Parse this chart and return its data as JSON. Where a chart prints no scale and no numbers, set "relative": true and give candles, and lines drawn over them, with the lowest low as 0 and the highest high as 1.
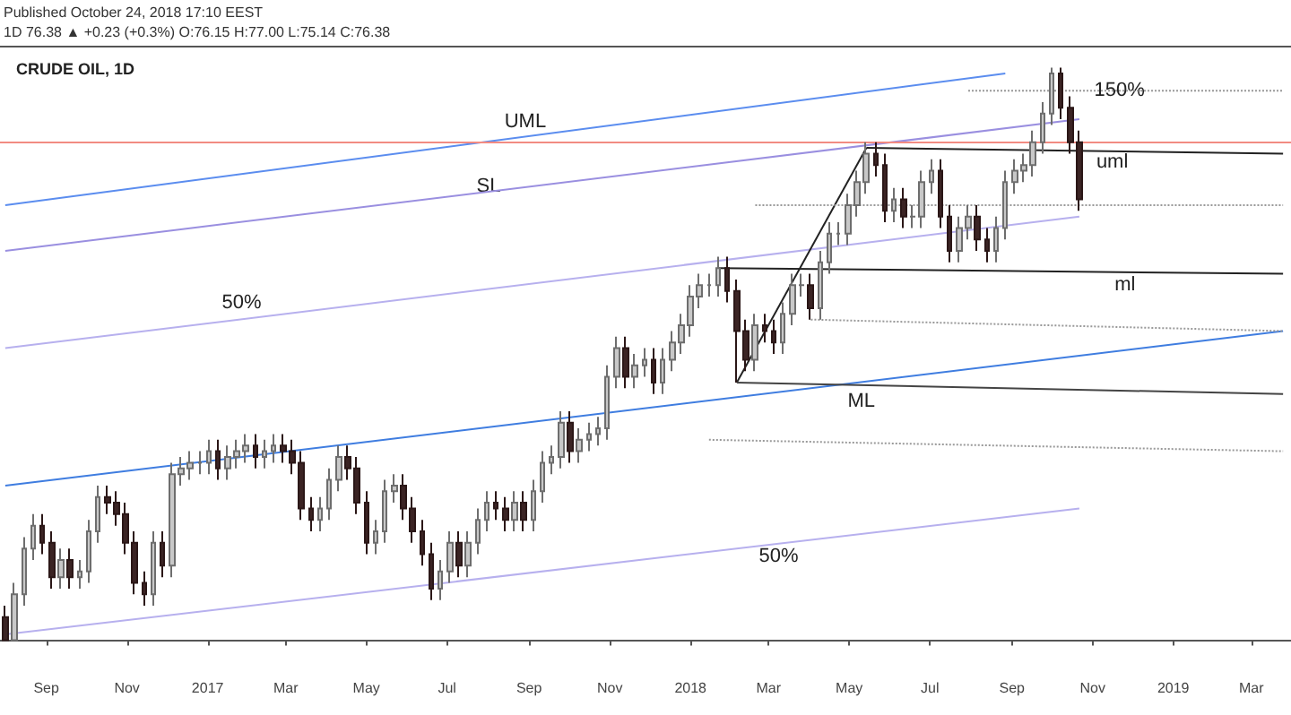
{
  "chart_data": {
    "type": "candlestick",
    "title": "CRUDE OIL, 1D",
    "relative": true,
    "grid": false,
    "annotations": [
      "Published October 24, 2018 17:10 EEST",
      "1D 76.38 ▲ +0.23 (+0.3%) O:76.15 H:77.00 L:75.14 C:76.38"
    ],
    "xlim": [
      "2016-07-28",
      "2019-03-31"
    ],
    "xticks": [
      {
        "value": "2016-09",
        "label": "Sep"
      },
      {
        "value": "2016-11",
        "label": "Nov"
      },
      {
        "value": "2017-01",
        "label": "2017"
      },
      {
        "value": "2017-03",
        "label": "Mar"
      },
      {
        "value": "2017-05",
        "label": "May"
      },
      {
        "value": "2017-07",
        "label": "Jul"
      },
      {
        "value": "2017-09",
        "label": "Sep"
      },
      {
        "value": "2017-11",
        "label": "Nov"
      },
      {
        "value": "2018-01",
        "label": "2018"
      },
      {
        "value": "2018-03",
        "label": "Mar"
      },
      {
        "value": "2018-05",
        "label": "May"
      },
      {
        "value": "2018-07",
        "label": "Jul"
      },
      {
        "value": "2018-09",
        "label": "Sep"
      },
      {
        "value": "2018-11",
        "label": "Nov"
      },
      {
        "value": "2019-01",
        "label": "2019"
      },
      {
        "value": "2019-03",
        "label": "Mar"
      }
    ],
    "ref_lines": [
      {
        "axis": "y",
        "value": 0.87,
        "color": "#f28b82"
      }
    ],
    "x": [
      "2016-08-01",
      "2016-08-08",
      "2016-08-15",
      "2016-08-22",
      "2016-08-29",
      "2016-09-05",
      "2016-09-12",
      "2016-09-19",
      "2016-09-26",
      "2016-10-03",
      "2016-10-10",
      "2016-10-17",
      "2016-10-24",
      "2016-10-31",
      "2016-11-07",
      "2016-11-14",
      "2016-11-21",
      "2016-11-28",
      "2016-12-05",
      "2016-12-12",
      "2016-12-19",
      "2016-12-26",
      "2017-01-02",
      "2017-01-09",
      "2017-01-16",
      "2017-01-23",
      "2017-01-30",
      "2017-02-06",
      "2017-02-13",
      "2017-02-20",
      "2017-02-27",
      "2017-03-06",
      "2017-03-13",
      "2017-03-20",
      "2017-03-27",
      "2017-04-03",
      "2017-04-10",
      "2017-04-17",
      "2017-04-24",
      "2017-05-01",
      "2017-05-08",
      "2017-05-15",
      "2017-05-22",
      "2017-05-29",
      "2017-06-05",
      "2017-06-12",
      "2017-06-19",
      "2017-06-26",
      "2017-07-03",
      "2017-07-10",
      "2017-07-17",
      "2017-07-24",
      "2017-07-31",
      "2017-08-07",
      "2017-08-14",
      "2017-08-21",
      "2017-08-28",
      "2017-09-04",
      "2017-09-11",
      "2017-09-18",
      "2017-09-25",
      "2017-10-02",
      "2017-10-09",
      "2017-10-16",
      "2017-10-23",
      "2017-10-30",
      "2017-11-06",
      "2017-11-13",
      "2017-11-20",
      "2017-11-27",
      "2017-12-04",
      "2017-12-11",
      "2017-12-18",
      "2017-12-25",
      "2018-01-01",
      "2018-01-08",
      "2018-01-15",
      "2018-01-22",
      "2018-01-29",
      "2018-02-05",
      "2018-02-12",
      "2018-02-19",
      "2018-02-26",
      "2018-03-05",
      "2018-03-12",
      "2018-03-19",
      "2018-03-26",
      "2018-04-02",
      "2018-04-09",
      "2018-04-16",
      "2018-04-23",
      "2018-04-30",
      "2018-05-07",
      "2018-05-14",
      "2018-05-21",
      "2018-05-28",
      "2018-06-04",
      "2018-06-11",
      "2018-06-18",
      "2018-06-25",
      "2018-07-02",
      "2018-07-09",
      "2018-07-16",
      "2018-07-23",
      "2018-07-30",
      "2018-08-06",
      "2018-08-13",
      "2018-08-20",
      "2018-08-27",
      "2018-09-03",
      "2018-09-10",
      "2018-09-17",
      "2018-09-24",
      "2018-10-01",
      "2018-10-08",
      "2018-10-15",
      "2018-10-22"
    ],
    "ohlc": [
      [
        0.04,
        0.06,
        0.0,
        0.0
      ],
      [
        0.0,
        0.1,
        0.0,
        0.08
      ],
      [
        0.08,
        0.18,
        0.06,
        0.16
      ],
      [
        0.16,
        0.22,
        0.14,
        0.2
      ],
      [
        0.2,
        0.22,
        0.15,
        0.17
      ],
      [
        0.17,
        0.19,
        0.09,
        0.11
      ],
      [
        0.11,
        0.16,
        0.09,
        0.14
      ],
      [
        0.14,
        0.16,
        0.09,
        0.11
      ],
      [
        0.11,
        0.14,
        0.09,
        0.12
      ],
      [
        0.12,
        0.21,
        0.1,
        0.19
      ],
      [
        0.19,
        0.27,
        0.17,
        0.25
      ],
      [
        0.25,
        0.27,
        0.22,
        0.24
      ],
      [
        0.24,
        0.26,
        0.2,
        0.22
      ],
      [
        0.22,
        0.24,
        0.15,
        0.17
      ],
      [
        0.17,
        0.19,
        0.08,
        0.1
      ],
      [
        0.1,
        0.12,
        0.06,
        0.08
      ],
      [
        0.08,
        0.19,
        0.06,
        0.17
      ],
      [
        0.17,
        0.19,
        0.11,
        0.13
      ],
      [
        0.13,
        0.31,
        0.11,
        0.29
      ],
      [
        0.29,
        0.32,
        0.27,
        0.3
      ],
      [
        0.3,
        0.33,
        0.28,
        0.31
      ],
      [
        0.31,
        0.33,
        0.29,
        0.31
      ],
      [
        0.31,
        0.35,
        0.29,
        0.33
      ],
      [
        0.33,
        0.35,
        0.28,
        0.3
      ],
      [
        0.3,
        0.34,
        0.28,
        0.32
      ],
      [
        0.32,
        0.35,
        0.3,
        0.33
      ],
      [
        0.33,
        0.36,
        0.31,
        0.34
      ],
      [
        0.34,
        0.36,
        0.3,
        0.32
      ],
      [
        0.32,
        0.35,
        0.3,
        0.33
      ],
      [
        0.33,
        0.36,
        0.31,
        0.34
      ],
      [
        0.34,
        0.36,
        0.31,
        0.33
      ],
      [
        0.33,
        0.35,
        0.29,
        0.31
      ],
      [
        0.31,
        0.33,
        0.21,
        0.23
      ],
      [
        0.23,
        0.25,
        0.19,
        0.21
      ],
      [
        0.21,
        0.25,
        0.19,
        0.23
      ],
      [
        0.23,
        0.3,
        0.21,
        0.28
      ],
      [
        0.28,
        0.34,
        0.26,
        0.32
      ],
      [
        0.32,
        0.34,
        0.28,
        0.3
      ],
      [
        0.3,
        0.32,
        0.22,
        0.24
      ],
      [
        0.24,
        0.26,
        0.15,
        0.17
      ],
      [
        0.17,
        0.21,
        0.15,
        0.19
      ],
      [
        0.19,
        0.28,
        0.17,
        0.26
      ],
      [
        0.26,
        0.29,
        0.24,
        0.27
      ],
      [
        0.27,
        0.29,
        0.21,
        0.23
      ],
      [
        0.23,
        0.25,
        0.17,
        0.19
      ],
      [
        0.19,
        0.21,
        0.13,
        0.15
      ],
      [
        0.15,
        0.17,
        0.07,
        0.09
      ],
      [
        0.09,
        0.14,
        0.07,
        0.12
      ],
      [
        0.12,
        0.19,
        0.1,
        0.17
      ],
      [
        0.17,
        0.19,
        0.11,
        0.13
      ],
      [
        0.13,
        0.19,
        0.11,
        0.17
      ],
      [
        0.17,
        0.23,
        0.15,
        0.21
      ],
      [
        0.21,
        0.26,
        0.19,
        0.24
      ],
      [
        0.24,
        0.26,
        0.21,
        0.23
      ],
      [
        0.23,
        0.25,
        0.19,
        0.21
      ],
      [
        0.21,
        0.26,
        0.19,
        0.24
      ],
      [
        0.24,
        0.26,
        0.19,
        0.21
      ],
      [
        0.21,
        0.28,
        0.19,
        0.26
      ],
      [
        0.26,
        0.33,
        0.24,
        0.31
      ],
      [
        0.31,
        0.34,
        0.29,
        0.32
      ],
      [
        0.32,
        0.4,
        0.3,
        0.38
      ],
      [
        0.38,
        0.4,
        0.31,
        0.33
      ],
      [
        0.33,
        0.37,
        0.31,
        0.35
      ],
      [
        0.35,
        0.38,
        0.33,
        0.36
      ],
      [
        0.36,
        0.39,
        0.34,
        0.37
      ],
      [
        0.37,
        0.48,
        0.35,
        0.46
      ],
      [
        0.46,
        0.53,
        0.44,
        0.51
      ],
      [
        0.51,
        0.53,
        0.44,
        0.46
      ],
      [
        0.46,
        0.5,
        0.44,
        0.48
      ],
      [
        0.48,
        0.51,
        0.46,
        0.49
      ],
      [
        0.49,
        0.51,
        0.43,
        0.45
      ],
      [
        0.45,
        0.51,
        0.43,
        0.49
      ],
      [
        0.49,
        0.54,
        0.47,
        0.52
      ],
      [
        0.52,
        0.57,
        0.5,
        0.55
      ],
      [
        0.55,
        0.62,
        0.53,
        0.6
      ],
      [
        0.6,
        0.64,
        0.58,
        0.62
      ],
      [
        0.62,
        0.64,
        0.6,
        0.62
      ],
      [
        0.62,
        0.67,
        0.6,
        0.65
      ],
      [
        0.65,
        0.67,
        0.59,
        0.61
      ],
      [
        0.61,
        0.63,
        0.45,
        0.54
      ],
      [
        0.54,
        0.56,
        0.47,
        0.49
      ],
      [
        0.49,
        0.57,
        0.47,
        0.55
      ],
      [
        0.55,
        0.57,
        0.52,
        0.54
      ],
      [
        0.54,
        0.56,
        0.5,
        0.52
      ],
      [
        0.52,
        0.59,
        0.5,
        0.57
      ],
      [
        0.57,
        0.64,
        0.55,
        0.62
      ],
      [
        0.62,
        0.64,
        0.6,
        0.62
      ],
      [
        0.62,
        0.64,
        0.56,
        0.58
      ],
      [
        0.58,
        0.68,
        0.56,
        0.66
      ],
      [
        0.66,
        0.73,
        0.64,
        0.71
      ],
      [
        0.71,
        0.73,
        0.69,
        0.71
      ],
      [
        0.71,
        0.78,
        0.69,
        0.76
      ],
      [
        0.76,
        0.82,
        0.74,
        0.8
      ],
      [
        0.8,
        0.87,
        0.78,
        0.85
      ],
      [
        0.85,
        0.87,
        0.81,
        0.83
      ],
      [
        0.83,
        0.85,
        0.73,
        0.75
      ],
      [
        0.75,
        0.79,
        0.73,
        0.77
      ],
      [
        0.77,
        0.79,
        0.72,
        0.74
      ],
      [
        0.74,
        0.76,
        0.72,
        0.74
      ],
      [
        0.74,
        0.82,
        0.72,
        0.8
      ],
      [
        0.8,
        0.84,
        0.78,
        0.82
      ],
      [
        0.82,
        0.84,
        0.72,
        0.74
      ],
      [
        0.74,
        0.76,
        0.66,
        0.68
      ],
      [
        0.68,
        0.74,
        0.66,
        0.72
      ],
      [
        0.72,
        0.76,
        0.7,
        0.74
      ],
      [
        0.74,
        0.76,
        0.68,
        0.7
      ],
      [
        0.7,
        0.72,
        0.66,
        0.68
      ],
      [
        0.68,
        0.74,
        0.66,
        0.72
      ],
      [
        0.72,
        0.82,
        0.7,
        0.8
      ],
      [
        0.8,
        0.84,
        0.78,
        0.82
      ],
      [
        0.82,
        0.85,
        0.8,
        0.83
      ],
      [
        0.83,
        0.89,
        0.81,
        0.87
      ],
      [
        0.87,
        0.94,
        0.85,
        0.92
      ],
      [
        0.92,
        1.0,
        0.9,
        0.99
      ],
      [
        0.99,
        1.0,
        0.91,
        0.93
      ],
      [
        0.93,
        0.95,
        0.85,
        0.87
      ],
      [
        0.87,
        0.89,
        0.75,
        0.77
      ]
    ],
    "series": [
      {
        "type": "line",
        "name": "UML",
        "color": "#5b8def",
        "line_style": "solid",
        "x": [
          "2016-08-01",
          "2018-08-27"
        ],
        "values": [
          0.76,
          0.99
        ]
      },
      {
        "type": "line",
        "name": "SL",
        "color": "#9a8fe0",
        "line_style": "solid",
        "x": [
          "2016-08-01",
          "2018-10-22"
        ],
        "values": [
          0.68,
          0.91
        ]
      },
      {
        "type": "line",
        "name": "50%",
        "color": "#b7b0ee",
        "line_style": "solid",
        "x": [
          "2016-08-01",
          "2018-10-22"
        ],
        "values": [
          0.51,
          0.74
        ]
      },
      {
        "type": "line",
        "name": "ML",
        "color": "#3f7de0",
        "line_style": "solid",
        "x": [
          "2016-08-01",
          "2019-03-25"
        ],
        "values": [
          0.27,
          0.54
        ]
      },
      {
        "type": "line",
        "name": "50%",
        "color": "#b7b0ee",
        "line_style": "solid",
        "x": [
          "2016-08-01",
          "2018-10-22"
        ],
        "values": [
          0.01,
          0.23
        ]
      },
      {
        "type": "line",
        "color": "#222222",
        "line_style": "solid",
        "x": [
          "2018-02-05",
          "2018-05-14"
        ],
        "values": [
          0.45,
          0.86
        ]
      },
      {
        "type": "line",
        "name": "uml",
        "color": "#222222",
        "line_style": "solid",
        "x": [
          "2018-05-14",
          "2019-03-25"
        ],
        "values": [
          0.86,
          0.85
        ]
      },
      {
        "type": "line",
        "name": "ml",
        "color": "#222222",
        "line_style": "solid",
        "x": [
          "2018-01-22",
          "2019-03-25"
        ],
        "values": [
          0.65,
          0.64
        ]
      },
      {
        "type": "line",
        "color": "#444444",
        "line_style": "solid",
        "x": [
          "2018-02-05",
          "2019-03-25"
        ],
        "values": [
          0.45,
          0.43
        ]
      },
      {
        "type": "line",
        "name": "150%",
        "color": "#999999",
        "line_style": "dotted",
        "x": [
          "2018-07-30",
          "2019-03-25"
        ],
        "values": [
          0.96,
          0.96
        ]
      },
      {
        "type": "line",
        "color": "#999999",
        "line_style": "dotted",
        "x": [
          "2018-02-19",
          "2019-03-25"
        ],
        "values": [
          0.76,
          0.76
        ]
      },
      {
        "type": "line",
        "color": "#999999",
        "line_style": "dotted",
        "x": [
          "2018-04-02",
          "2019-03-25"
        ],
        "values": [
          0.56,
          0.54
        ]
      },
      {
        "type": "line",
        "color": "#999999",
        "line_style": "dotted",
        "x": [
          "2018-01-15",
          "2019-03-25"
        ],
        "values": [
          0.35,
          0.33
        ]
      }
    ]
  }
}
